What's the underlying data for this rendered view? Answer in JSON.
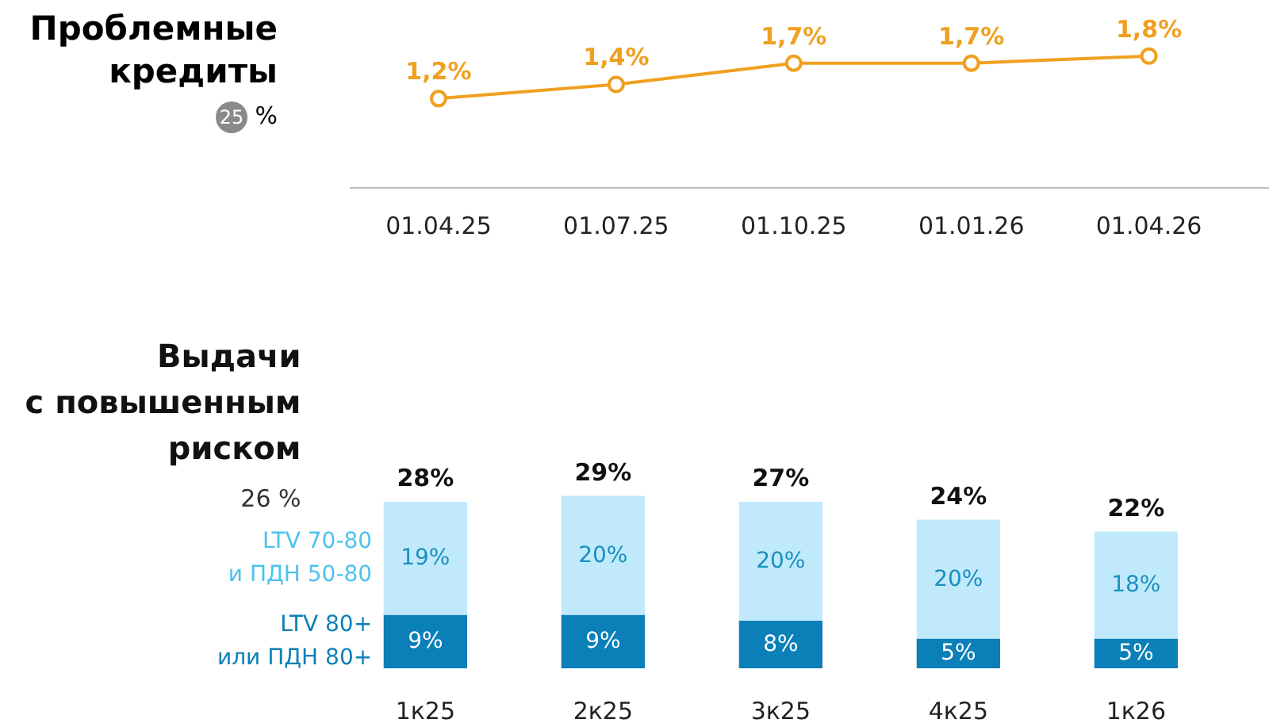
{
  "chart_data": [
    {
      "type": "line",
      "title": "Проблемные кредиты",
      "annotations": [
        "25 %"
      ],
      "categories": [
        "01.04.25",
        "01.07.25",
        "01.10.25",
        "01.01.26",
        "01.04.26"
      ],
      "series": [
        {
          "color": "#f0a020",
          "values": [
            1.2,
            1.4,
            1.7,
            1.7,
            1.8
          ],
          "value_labels": [
            "1,2%",
            "1,4%",
            "1,7%",
            "1,7%",
            "1,8%"
          ]
        }
      ],
      "marker": "circle",
      "grid": false
    },
    {
      "type": "bar",
      "stacked": true,
      "title": "Выдачи\nс повышенным\nриском",
      "annotations": [
        "26 %"
      ],
      "categories": [
        "1к25",
        "2к25",
        "3к25",
        "4к25",
        "1к26"
      ],
      "series": [
        {
          "name": "LTV 80+\nили ПДН 80+",
          "color": "#0b7fb8",
          "values": [
            9,
            9,
            8,
            5,
            5
          ],
          "value_labels": [
            "9%",
            "9%",
            "8%",
            "5%",
            "5%"
          ]
        },
        {
          "name": "LTV 70-80\nи ПДН 50-80",
          "color": "#c0eafb",
          "values": [
            19,
            20,
            20,
            20,
            18
          ],
          "value_labels": [
            "19%",
            "20%",
            "20%",
            "20%",
            "18%"
          ]
        }
      ],
      "totals": [
        "28%",
        "29%",
        "27%",
        "24%",
        "22%"
      ],
      "grid": false,
      "legend": "left"
    }
  ]
}
